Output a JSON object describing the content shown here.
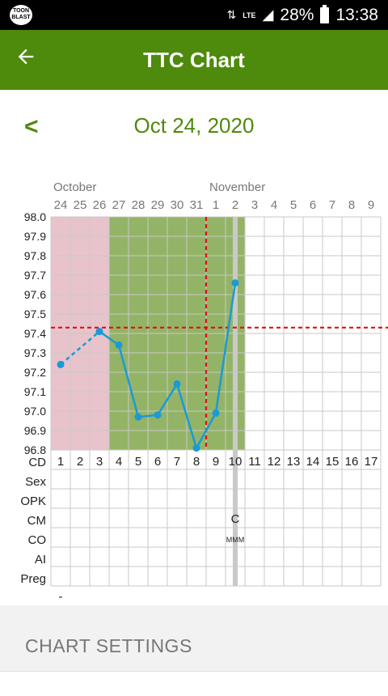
{
  "status": {
    "net": "LTE",
    "battery": "28%",
    "time": "13:38"
  },
  "header": {
    "title": "TTC Chart"
  },
  "nav": {
    "prev": "<",
    "date": "Oct 24, 2020"
  },
  "months": [
    "October",
    "November"
  ],
  "dates": [
    "24",
    "25",
    "26",
    "27",
    "28",
    "29",
    "30",
    "31",
    "1",
    "2",
    "3",
    "4",
    "5",
    "6",
    "7",
    "8",
    "9"
  ],
  "temp_labels": [
    "98.0",
    "97.9",
    "97.8",
    "97.7",
    "97.6",
    "97.5",
    "97.4",
    "97.3",
    "97.2",
    "97.1",
    "97.0",
    "96.9",
    "96.8"
  ],
  "row_labels": [
    "CD",
    "Sex",
    "OPK",
    "CM",
    "CO",
    "AI",
    "Preg"
  ],
  "cd": [
    "1",
    "2",
    "3",
    "4",
    "5",
    "6",
    "7",
    "8",
    "9",
    "10",
    "11",
    "12",
    "13",
    "14",
    "15",
    "16",
    "17"
  ],
  "entries": {
    "cm_day10": "C",
    "co_day10": "MMM",
    "preg_day1": "-"
  },
  "chart_data": {
    "type": "line",
    "x": [
      1,
      2,
      3,
      4,
      5,
      6,
      7,
      8,
      9,
      10
    ],
    "temps": [
      97.24,
      null,
      97.41,
      97.34,
      96.97,
      96.98,
      97.14,
      96.81,
      96.99,
      97.66
    ],
    "coverline": 97.43,
    "ovulation_cd": 9,
    "today_cd": 10,
    "ylim": [
      96.8,
      98.0
    ],
    "phases": [
      {
        "from": 1,
        "to": 3,
        "color": "#e8c3cb"
      },
      {
        "from": 4,
        "to": 10,
        "color": "#93b466"
      }
    ],
    "line_color": "#1a9ad6",
    "coverline_color": "#e01010"
  },
  "settings": {
    "heading": "CHART SETTINGS"
  }
}
